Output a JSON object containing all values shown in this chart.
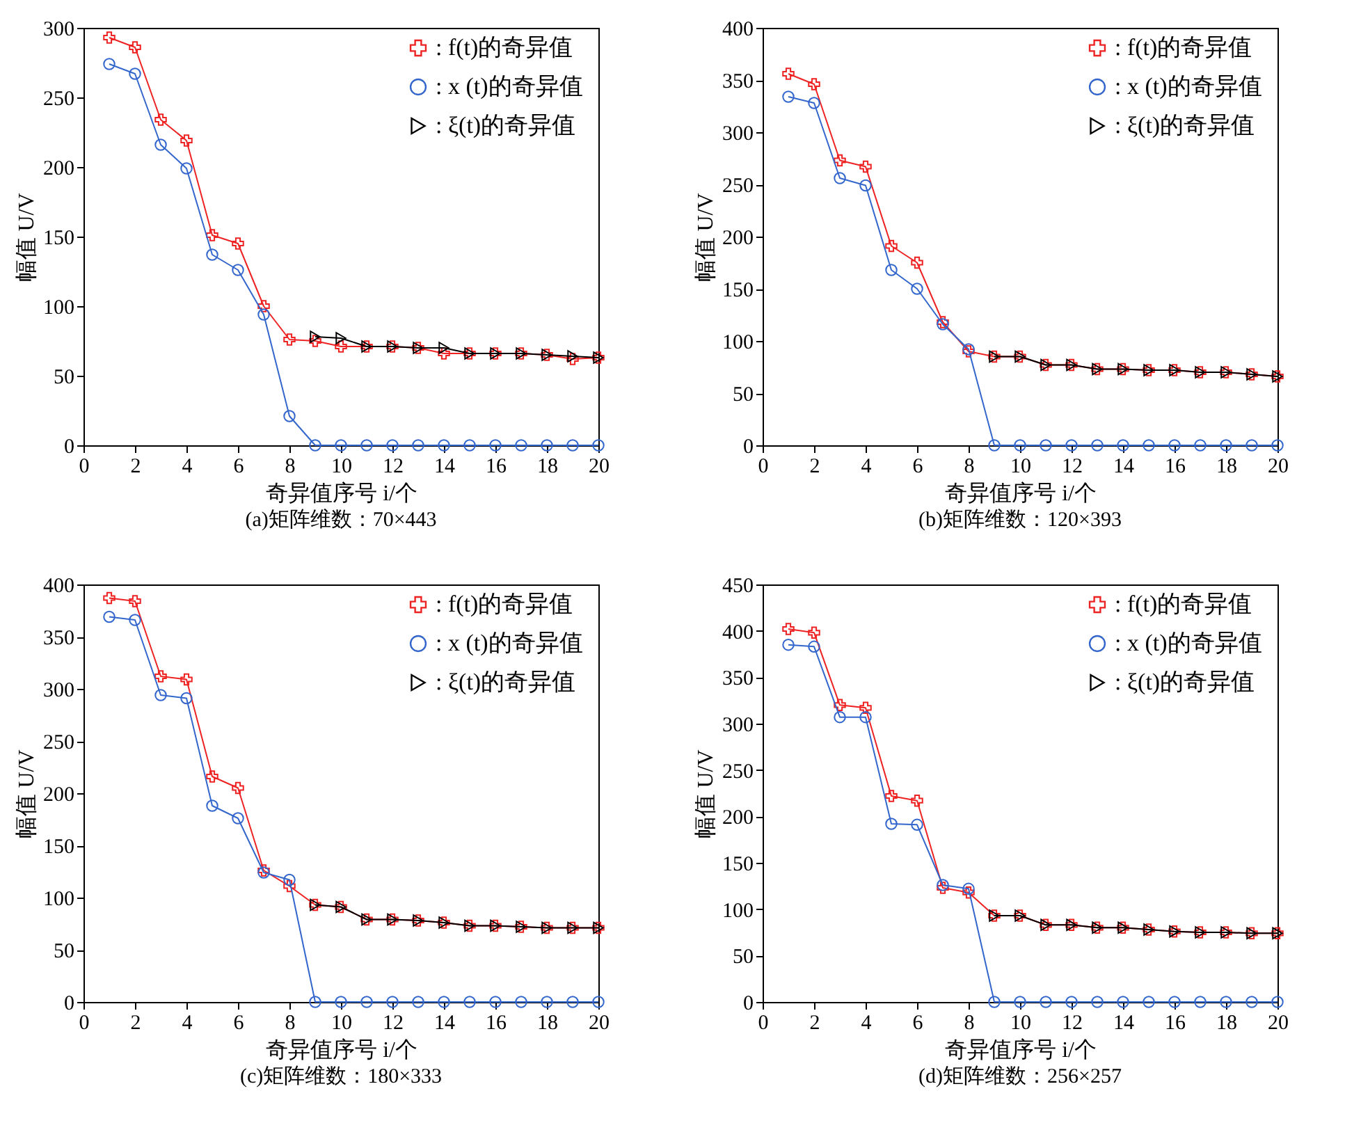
{
  "chart_data": [
    {
      "type": "line",
      "title": "(a)矩阵维数：70×443",
      "xlabel": "奇异值序号 i/个",
      "ylabel": "幅值 U/V",
      "x": [
        1,
        2,
        3,
        4,
        5,
        6,
        7,
        8,
        9,
        10,
        11,
        12,
        13,
        14,
        15,
        16,
        17,
        18,
        19,
        20
      ],
      "xlim": [
        0,
        20
      ],
      "xticks": [
        0,
        2,
        4,
        6,
        8,
        10,
        12,
        14,
        16,
        18,
        20
      ],
      "ylim": [
        0,
        300
      ],
      "yticks": [
        0,
        50,
        100,
        150,
        200,
        250,
        300
      ],
      "legend": "top right",
      "series": [
        {
          "name": ":  f(t)的奇异值",
          "color": "#ee2222",
          "marker": "cross",
          "values": [
            293,
            286,
            234,
            219,
            151,
            145,
            100,
            76,
            75,
            71,
            71,
            71,
            70,
            66,
            66,
            66,
            66,
            65,
            62,
            63
          ]
        },
        {
          "name": ":  x (t)的奇异值",
          "color": "#3366cc",
          "marker": "circle",
          "values": [
            274,
            267,
            216,
            199,
            137,
            126,
            94,
            21,
            0,
            0,
            0,
            0,
            0,
            0,
            0,
            0,
            0,
            0,
            0,
            0
          ]
        },
        {
          "name": ":  ξ(t)的奇异值",
          "color": "#000000",
          "marker": "triangle",
          "values": [
            null,
            null,
            null,
            null,
            null,
            null,
            null,
            null,
            78,
            77,
            71,
            71,
            70,
            70,
            66,
            66,
            66,
            65,
            64,
            63
          ]
        }
      ]
    },
    {
      "type": "line",
      "title": "(b)矩阵维数：120×393",
      "xlabel": "奇异值序号 i/个",
      "ylabel": "幅值 U/V",
      "x": [
        1,
        2,
        3,
        4,
        5,
        6,
        7,
        8,
        9,
        10,
        11,
        12,
        13,
        14,
        15,
        16,
        17,
        18,
        19,
        20
      ],
      "xlim": [
        0,
        20
      ],
      "xticks": [
        0,
        2,
        4,
        6,
        8,
        10,
        12,
        14,
        16,
        18,
        20
      ],
      "ylim": [
        0,
        400
      ],
      "yticks": [
        0,
        50,
        100,
        150,
        200,
        250,
        300,
        350,
        400
      ],
      "legend": "top right",
      "series": [
        {
          "name": ":  f(t)的奇异值",
          "color": "#ee2222",
          "marker": "cross",
          "values": [
            356,
            346,
            273,
            267,
            191,
            175,
            118,
            90,
            85,
            85,
            77,
            77,
            73,
            73,
            72,
            72,
            70,
            70,
            68,
            66
          ]
        },
        {
          "name": ":  x (t)的奇异值",
          "color": "#3366cc",
          "marker": "circle",
          "values": [
            334,
            328,
            256,
            249,
            168,
            150,
            116,
            92,
            0,
            0,
            0,
            0,
            0,
            0,
            0,
            0,
            0,
            0,
            0,
            0
          ]
        },
        {
          "name": ":  ξ(t)的奇异值",
          "color": "#000000",
          "marker": "triangle",
          "values": [
            null,
            null,
            null,
            null,
            null,
            null,
            null,
            null,
            85,
            85,
            77,
            77,
            73,
            73,
            72,
            72,
            70,
            70,
            68,
            66
          ]
        }
      ]
    },
    {
      "type": "line",
      "title": "(c)矩阵维数：180×333",
      "xlabel": "奇异值序号 i/个",
      "ylabel": "幅值 U/V",
      "x": [
        1,
        2,
        3,
        4,
        5,
        6,
        7,
        8,
        9,
        10,
        11,
        12,
        13,
        14,
        15,
        16,
        17,
        18,
        19,
        20
      ],
      "xlim": [
        0,
        20
      ],
      "xticks": [
        0,
        2,
        4,
        6,
        8,
        10,
        12,
        14,
        16,
        18,
        20
      ],
      "ylim": [
        0,
        400
      ],
      "yticks": [
        0,
        50,
        100,
        150,
        200,
        250,
        300,
        350,
        400
      ],
      "legend": "top right",
      "series": [
        {
          "name": ":  f(t)的奇异值",
          "color": "#ee2222",
          "marker": "cross",
          "values": [
            387,
            384,
            312,
            309,
            216,
            205,
            126,
            111,
            93,
            91,
            79,
            79,
            78,
            76,
            73,
            73,
            72,
            71,
            71,
            71
          ]
        },
        {
          "name": ":  x (t)的奇异值",
          "color": "#3366cc",
          "marker": "circle",
          "values": [
            369,
            366,
            294,
            291,
            188,
            176,
            124,
            117,
            0,
            0,
            0,
            0,
            0,
            0,
            0,
            0,
            0,
            0,
            0,
            0
          ]
        },
        {
          "name": ":  ξ(t)的奇异值",
          "color": "#000000",
          "marker": "triangle",
          "values": [
            null,
            null,
            null,
            null,
            null,
            null,
            null,
            null,
            93,
            91,
            79,
            79,
            78,
            76,
            73,
            73,
            72,
            71,
            71,
            71
          ]
        }
      ]
    },
    {
      "type": "line",
      "title": "(d)矩阵维数：256×257",
      "xlabel": "奇异值序号 i/个",
      "ylabel": "幅值 U/V",
      "x": [
        1,
        2,
        3,
        4,
        5,
        6,
        7,
        8,
        9,
        10,
        11,
        12,
        13,
        14,
        15,
        16,
        17,
        18,
        19,
        20
      ],
      "xlim": [
        0,
        20
      ],
      "xticks": [
        0,
        2,
        4,
        6,
        8,
        10,
        12,
        14,
        16,
        18,
        20
      ],
      "ylim": [
        0,
        450
      ],
      "yticks": [
        0,
        50,
        100,
        150,
        200,
        250,
        300,
        350,
        400,
        450
      ],
      "legend": "top right",
      "series": [
        {
          "name": ":  f(t)的奇异值",
          "color": "#ee2222",
          "marker": "cross",
          "values": [
            402,
            398,
            320,
            317,
            222,
            217,
            123,
            118,
            93,
            93,
            83,
            83,
            80,
            80,
            78,
            76,
            75,
            75,
            74,
            74
          ]
        },
        {
          "name": ":  x (t)的奇异值",
          "color": "#3366cc",
          "marker": "circle",
          "values": [
            385,
            383,
            307,
            307,
            192,
            191,
            126,
            122,
            0,
            0,
            0,
            0,
            0,
            0,
            0,
            0,
            0,
            0,
            0,
            0
          ]
        },
        {
          "name": ":  ξ(t)的奇异值",
          "color": "#000000",
          "marker": "triangle",
          "values": [
            null,
            null,
            null,
            null,
            null,
            null,
            null,
            null,
            93,
            93,
            83,
            83,
            80,
            80,
            78,
            76,
            75,
            75,
            74,
            74
          ]
        }
      ]
    }
  ]
}
